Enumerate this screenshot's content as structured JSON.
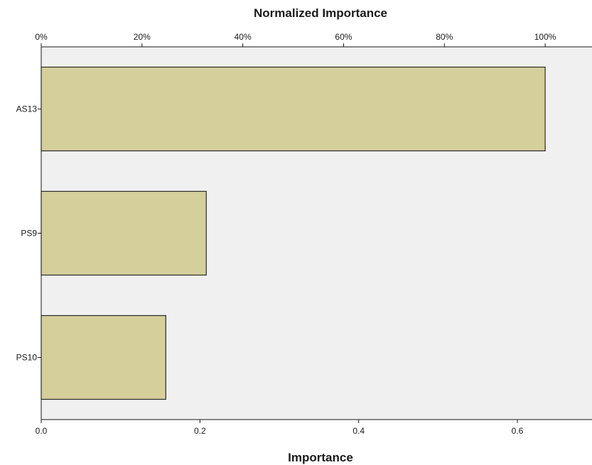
{
  "chart_data": {
    "type": "bar",
    "orientation": "horizontal",
    "title": "Normalized Importance",
    "xlabel": "Importance",
    "categories": [
      "AS13",
      "PS9",
      "PS10"
    ],
    "values": [
      0.635,
      0.208,
      0.157
    ],
    "xlim": [
      0,
      0.695
    ],
    "bottom_ticks": [
      0.0,
      0.2,
      0.4,
      0.6
    ],
    "bottom_tick_labels": [
      "0.0",
      "0.2",
      "0.4",
      "0.6"
    ],
    "top_axis": {
      "label": "Normalized Importance",
      "ticks_percent": [
        0,
        20,
        40,
        60,
        80,
        100
      ],
      "tick_labels": [
        "0%",
        "20%",
        "40%",
        "60%",
        "80%",
        "100%"
      ],
      "max_importance": 0.635
    },
    "grid": false,
    "legend": "none",
    "colors": {
      "bar_fill": "#d4cf9b",
      "bar_stroke": "#2a2a2a",
      "plot_background": "#f0f0f0",
      "axis": "#1a1a1a"
    }
  }
}
